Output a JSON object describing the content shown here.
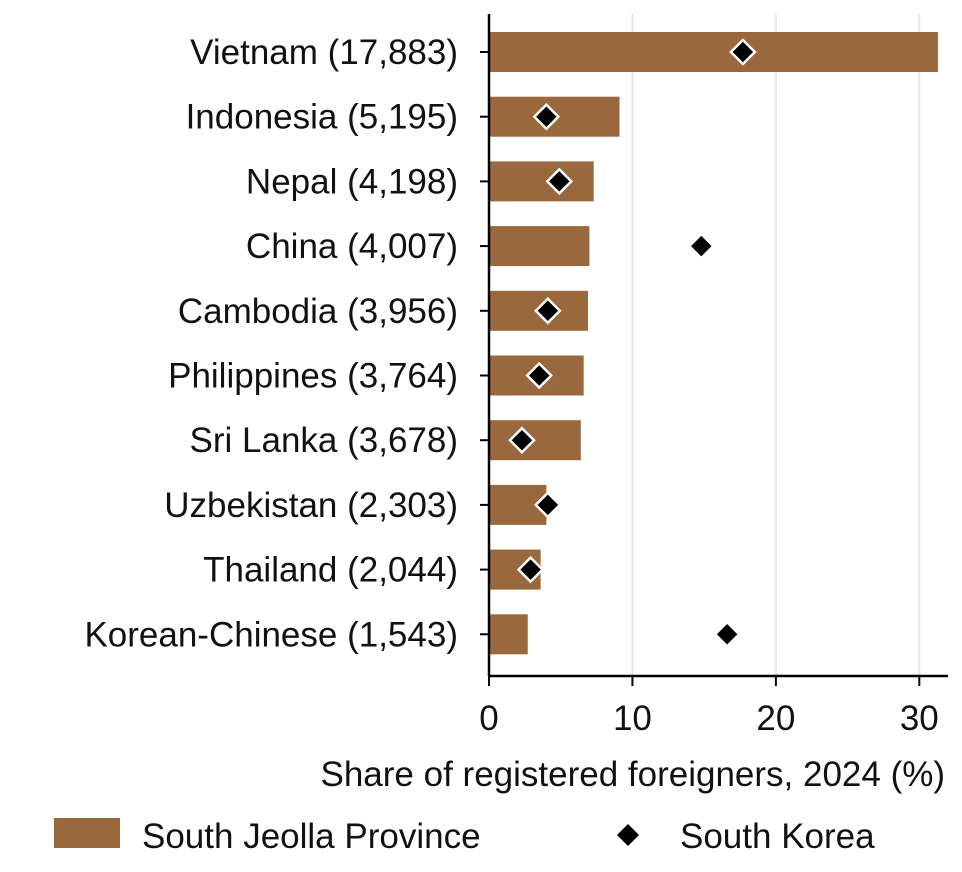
{
  "chart_data": {
    "type": "bar",
    "orientation": "horizontal",
    "title": "",
    "xlabel": "Share of registered foreigners, 2024 (%)",
    "ylabel": "",
    "xlim": [
      0,
      32
    ],
    "xticks": [
      0,
      10,
      20,
      30
    ],
    "xtick_labels": [
      "0",
      "10",
      "20",
      "30"
    ],
    "grid": "vertical",
    "legend_position": "bottom",
    "categories": [
      "Vietnam (17,883)",
      "Indonesia (5,195)",
      "Nepal (4,198)",
      "China (4,007)",
      "Cambodia (3,956)",
      "Philippines (3,764)",
      "Sri Lanka (3,678)",
      "Uzbekistan (2,303)",
      "Thailand (2,044)",
      "Korean-Chinese (1,543)"
    ],
    "series": [
      {
        "name": "South Jeolla Province",
        "type": "bar",
        "color": "#99683c",
        "values": [
          31.3,
          9.1,
          7.3,
          7.0,
          6.9,
          6.6,
          6.4,
          4.0,
          3.6,
          2.7
        ]
      },
      {
        "name": "South Korea",
        "type": "marker",
        "marker": "diamond",
        "color": "#000000",
        "values": [
          17.7,
          4.0,
          4.9,
          14.8,
          4.1,
          3.5,
          2.3,
          4.1,
          2.9,
          16.6
        ]
      }
    ]
  }
}
